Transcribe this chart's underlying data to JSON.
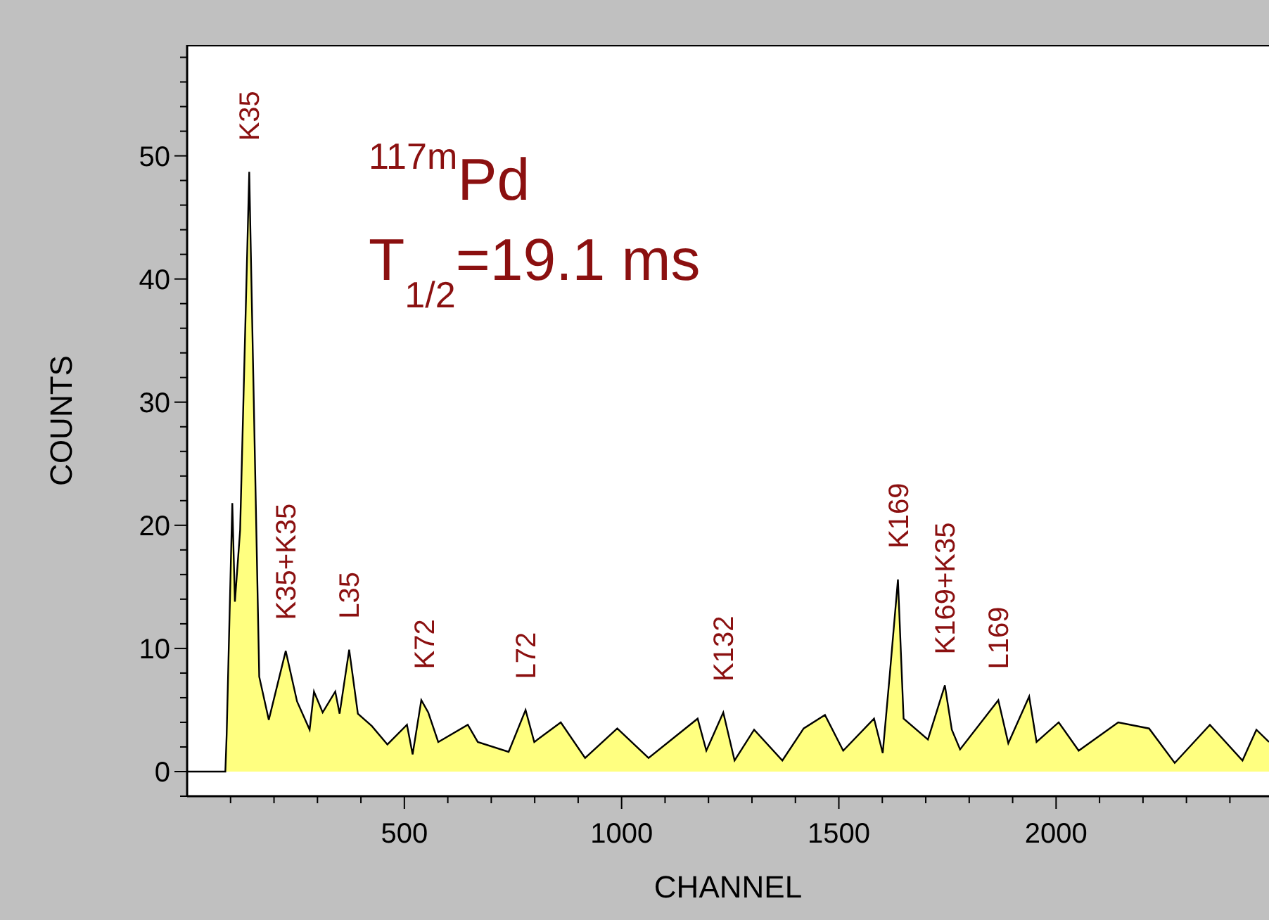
{
  "chart_data": {
    "type": "area",
    "xlabel": "CHANNEL",
    "ylabel": "COUNTS",
    "color": "#ffff80",
    "x": [
      0,
      88,
      91,
      104,
      110,
      122,
      143,
      166,
      188,
      227,
      253,
      282,
      292,
      312,
      341,
      351,
      373,
      393,
      425,
      461,
      506,
      519,
      539,
      555,
      578,
      646,
      669,
      740,
      779,
      799,
      860,
      916,
      990,
      1062,
      1175,
      1195,
      1234,
      1260,
      1305,
      1370,
      1419,
      1468,
      1510,
      1581,
      1601,
      1617,
      1636,
      1649,
      1705,
      1744,
      1760,
      1779,
      1867,
      1890,
      1938,
      1955,
      2006,
      2052,
      2143,
      2214,
      2273,
      2354,
      2429,
      2461,
      2490
    ],
    "values": [
      0,
      0,
      3,
      21.8,
      13.8,
      19.6,
      48.7,
      7.7,
      4.2,
      9.8,
      5.7,
      3.4,
      6.5,
      4.8,
      6.5,
      4.7,
      9.9,
      4.7,
      3.7,
      2.2,
      3.8,
      1.4,
      5.8,
      4.8,
      2.4,
      3.8,
      2.4,
      1.6,
      5.0,
      2.4,
      4.0,
      1.1,
      3.5,
      1.1,
      4.3,
      1.7,
      4.8,
      0.9,
      3.4,
      0.9,
      3.5,
      4.6,
      1.7,
      4.3,
      1.5,
      7.8,
      15.6,
      4.3,
      2.6,
      7.0,
      3.4,
      1.8,
      5.8,
      2.3,
      6.1,
      2.4,
      4.0,
      1.7,
      4.0,
      3.5,
      0.7,
      3.8,
      0.9,
      3.4,
      2.4
    ],
    "xlim": [
      0,
      2490
    ],
    "xticks": [
      {
        "value": 100,
        "label": null
      },
      {
        "value": 200,
        "label": null
      },
      {
        "value": 300,
        "label": null
      },
      {
        "value": 400,
        "label": null
      },
      500,
      {
        "value": 600,
        "label": null
      },
      {
        "value": 700,
        "label": null
      },
      {
        "value": 800,
        "label": null
      },
      {
        "value": 900,
        "label": null
      },
      1000,
      {
        "value": 1100,
        "label": null
      },
      {
        "value": 1200,
        "label": null
      },
      {
        "value": 1300,
        "label": null
      },
      {
        "value": 1400,
        "label": null
      },
      1500,
      {
        "value": 1600,
        "label": null
      },
      {
        "value": 1700,
        "label": null
      },
      {
        "value": 1800,
        "label": null
      },
      {
        "value": 1900,
        "label": null
      },
      2000,
      {
        "value": 2100,
        "label": null
      },
      {
        "value": 2200,
        "label": null
      },
      {
        "value": 2300,
        "label": null
      },
      {
        "value": 2400,
        "label": null
      }
    ],
    "ylim": [
      -2,
      59
    ],
    "yticks": [
      {
        "value": -2,
        "label": null
      },
      0,
      {
        "value": 2,
        "label": null
      },
      {
        "value": 4,
        "label": null
      },
      {
        "value": 6,
        "label": null
      },
      {
        "value": 8,
        "label": null
      },
      10,
      {
        "value": 12,
        "label": null
      },
      {
        "value": 14,
        "label": null
      },
      {
        "value": 16,
        "label": null
      },
      {
        "value": 18,
        "label": null
      },
      20,
      {
        "value": 22,
        "label": null
      },
      {
        "value": 24,
        "label": null
      },
      {
        "value": 26,
        "label": null
      },
      {
        "value": 28,
        "label": null
      },
      30,
      {
        "value": 32,
        "label": null
      },
      {
        "value": 34,
        "label": null
      },
      {
        "value": 36,
        "label": null
      },
      {
        "value": 38,
        "label": null
      },
      40,
      {
        "value": 42,
        "label": null
      },
      {
        "value": 44,
        "label": null
      },
      {
        "value": 46,
        "label": null
      },
      {
        "value": 48,
        "label": null
      },
      50,
      {
        "value": 52,
        "label": null
      },
      {
        "value": 54,
        "label": null
      },
      {
        "value": 56,
        "label": null
      },
      {
        "value": 58,
        "label": null
      }
    ],
    "annotations": [
      "$^{117m}$Pd",
      "T$_{1/2}$=19.1 ms",
      {
        "text": "K35",
        "x": 143,
        "y": 48.7
      },
      {
        "text": "K35+K35",
        "x": 227,
        "y": 9.8
      },
      {
        "text": "L35",
        "x": 373,
        "y": 9.9
      },
      {
        "text": "K72",
        "x": 545,
        "y": 5.8
      },
      {
        "text": "L72",
        "x": 779,
        "y": 5.0
      },
      {
        "text": "K132",
        "x": 1234,
        "y": 4.8
      },
      {
        "text": "K169",
        "x": 1636,
        "y": 15.6
      },
      {
        "text": "K169+K35",
        "x": 1744,
        "y": 7.0
      },
      {
        "text": "L169",
        "x": 1867,
        "y": 5.8
      }
    ]
  }
}
